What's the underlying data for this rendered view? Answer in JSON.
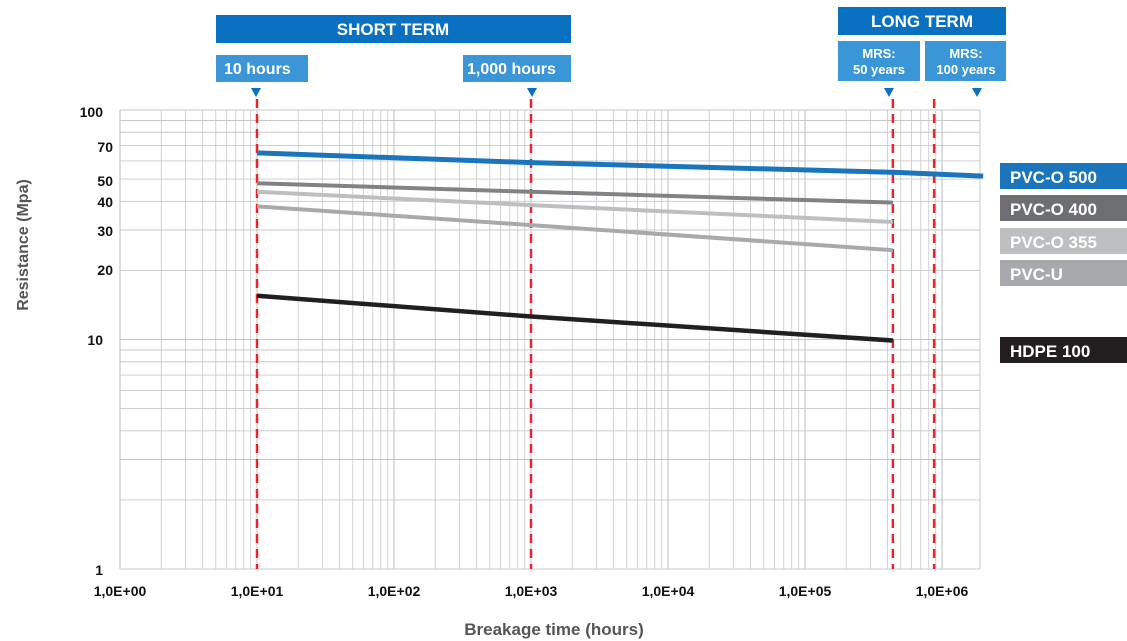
{
  "chart_data": {
    "type": "line",
    "title": "",
    "xlabel": "Breakage time (hours)",
    "ylabel": "Resistance (Mpa)",
    "x_scale": "log",
    "y_scale": "log",
    "xlim": [
      1,
      2000000
    ],
    "ylim": [
      1,
      100
    ],
    "grid": true,
    "x_tick_labels": [
      "1,0E+00",
      "1,0E+01",
      "1,0E+02",
      "1,0E+03",
      "1,0E+04",
      "1,0E+05",
      "1,0E+06"
    ],
    "y_tick_labels": [
      "1",
      "10",
      "20",
      "30",
      "40",
      "50",
      "70",
      "100"
    ],
    "y_tick_values": [
      1,
      10,
      20,
      30,
      40,
      50,
      70,
      100
    ],
    "series": [
      {
        "name": "PVC-O 500",
        "color": "#1b75bc",
        "x": [
          10,
          1000,
          438000,
          2000000
        ],
        "y": [
          65,
          59,
          53.5,
          51.5
        ]
      },
      {
        "name": "PVC-O 400",
        "color": "#808285",
        "x": [
          10,
          1000,
          438000
        ],
        "y": [
          48,
          44,
          39.5
        ]
      },
      {
        "name": "PVC-O 355",
        "color": "#bcbec0",
        "x": [
          10,
          1000,
          438000
        ],
        "y": [
          44,
          38.5,
          32.5
        ]
      },
      {
        "name": "PVC-U",
        "color": "#a7a9ac",
        "x": [
          10,
          1000,
          438000
        ],
        "y": [
          38,
          31.5,
          24.5
        ]
      },
      {
        "name": "HDPE 100",
        "color": "#231f20",
        "x": [
          10,
          1000,
          438000
        ],
        "y": [
          15.5,
          12.6,
          9.9
        ]
      }
    ],
    "reference_lines": [
      {
        "x": 10,
        "label": "10 hours"
      },
      {
        "x": 1000,
        "label": "1,000 hours"
      },
      {
        "x": 438000,
        "label": "MRS: 50 years"
      },
      {
        "x": 876000,
        "label": "MRS: 100 years"
      }
    ],
    "reference_line_color": "#e8262a",
    "annotations": {
      "short_term": "SHORT TERM",
      "long_term": "LONG TERM",
      "label_10h": "10 hours",
      "label_1000h": "1,000 hours",
      "mrs50_line1": "MRS:",
      "mrs50_line2": "50 years",
      "mrs100_line1": "MRS:",
      "mrs100_line2": "100 years"
    },
    "legend_position": "right",
    "colors": {
      "accent": "#0a71c0",
      "header_blue": "#0a71c0",
      "label_blue": "#3b96d8"
    }
  }
}
